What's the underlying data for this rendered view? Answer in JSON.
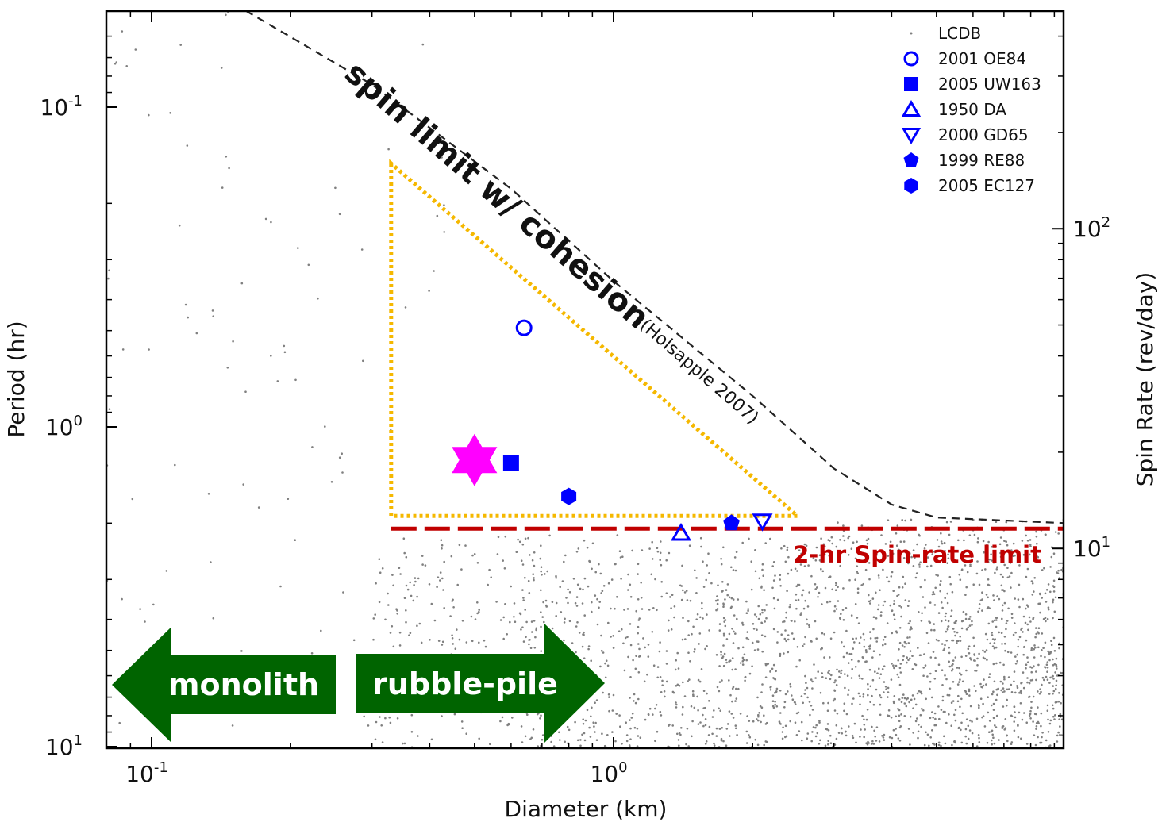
{
  "chart_data": {
    "type": "scatter",
    "xlabel": "Diameter (km)",
    "ylabel": "Period (hr)",
    "y2label": "Spin Rate (rev/day)",
    "x_scale": "log",
    "y_scale": "log",
    "xlim": [
      0.08,
      9.5
    ],
    "ylim": [
      0.05,
      10
    ],
    "y_inverted": true,
    "y2_scale": "log",
    "x_ticks": [
      {
        "value": 0.1,
        "base": "10",
        "exp": "-1"
      },
      {
        "value": 1,
        "base": "10",
        "exp": "0"
      }
    ],
    "y_ticks": [
      {
        "value": 0.1,
        "base": "10",
        "exp": "-1"
      },
      {
        "value": 1,
        "base": "10",
        "exp": "0"
      },
      {
        "value": 10,
        "base": "10",
        "exp": "1"
      }
    ],
    "y2_ticks": [
      {
        "value": 100,
        "base": "10",
        "exp": "2"
      },
      {
        "value": 10,
        "base": "10",
        "exp": "1"
      }
    ],
    "legend_position": "top-right",
    "background_series": {
      "name": "LCDB",
      "color": "#808080",
      "description_points": "thousands of small gray dots, dense for D > 0.7 km and P > 2.2 hr"
    },
    "series": [
      {
        "name": "2001 OE84",
        "marker": "circle-open",
        "color": "#0000ff",
        "x": 0.64,
        "y": 0.49
      },
      {
        "name": "2005 UW163",
        "marker": "square",
        "color": "#0000ff",
        "x": 0.6,
        "y": 1.3
      },
      {
        "name": "1950 DA",
        "marker": "triangle-up-open",
        "color": "#0000ff",
        "x": 1.4,
        "y": 2.15
      },
      {
        "name": "2000 GD65",
        "marker": "triangle-down-open",
        "color": "#0000ff",
        "x": 2.1,
        "y": 1.97
      },
      {
        "name": "1999 RE88",
        "marker": "pentagon",
        "color": "#0000ff",
        "x": 1.8,
        "y": 2.0
      },
      {
        "name": "2005 EC127",
        "marker": "hexagon",
        "color": "#0000ff",
        "x": 0.8,
        "y": 1.65
      }
    ],
    "highlight_marker": {
      "marker": "star-6",
      "color": "#ff00ff",
      "x": 0.5,
      "y": 1.27
    },
    "spin_limit_curve": {
      "label": "spin limit w/ cohesion",
      "citation": "(Holsapple 2007)",
      "color": "#222222",
      "points": [
        [
          0.16,
          0.05
        ],
        [
          0.3,
          0.085
        ],
        [
          0.6,
          0.18
        ],
        [
          1.0,
          0.35
        ],
        [
          2.0,
          0.8
        ],
        [
          3.0,
          1.35
        ],
        [
          4.0,
          1.75
        ],
        [
          5.0,
          1.92
        ],
        [
          9.5,
          2.0
        ]
      ]
    },
    "spin_rate_limit": {
      "label": "2-hr Spin-rate limit",
      "period_hr": 2.0,
      "color": "#c00000"
    },
    "region_triangle": {
      "color": "#f5b800",
      "vertices": [
        [
          0.33,
          0.15
        ],
        [
          0.33,
          1.9
        ],
        [
          2.5,
          1.9
        ]
      ]
    },
    "arrows": [
      {
        "label": "monolith",
        "direction": "left",
        "color": "#006400"
      },
      {
        "label": "rubble-pile",
        "direction": "right",
        "color": "#006400"
      }
    ]
  }
}
